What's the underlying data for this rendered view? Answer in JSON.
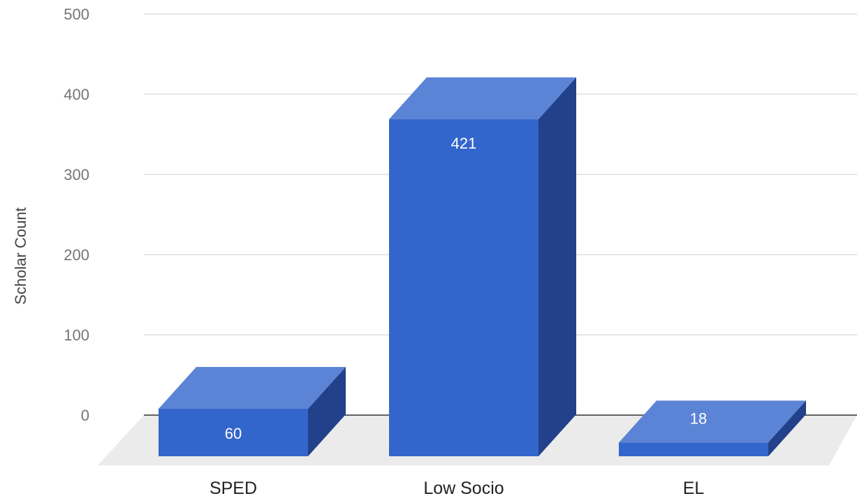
{
  "chart_data": {
    "type": "bar",
    "style": "3d",
    "categories": [
      "SPED",
      "Low Socio",
      "EL"
    ],
    "values": [
      60,
      421,
      18
    ],
    "data_labels": [
      "60",
      "421",
      "18"
    ],
    "ylabel": "Scholar Count",
    "xlabel": "",
    "ylim": [
      0,
      500
    ],
    "yticks": [
      0,
      100,
      200,
      300,
      400,
      500
    ],
    "ytick_labels": [
      "0",
      "100",
      "200",
      "300",
      "400",
      "500"
    ],
    "grid": true,
    "legend": "none",
    "colors": {
      "bar_front": "#3366cc",
      "bar_top": "#5b84d6",
      "bar_side": "#22418a",
      "floor": "#ebebeb",
      "gridline": "#cccccc",
      "baseline": "#333333"
    }
  }
}
